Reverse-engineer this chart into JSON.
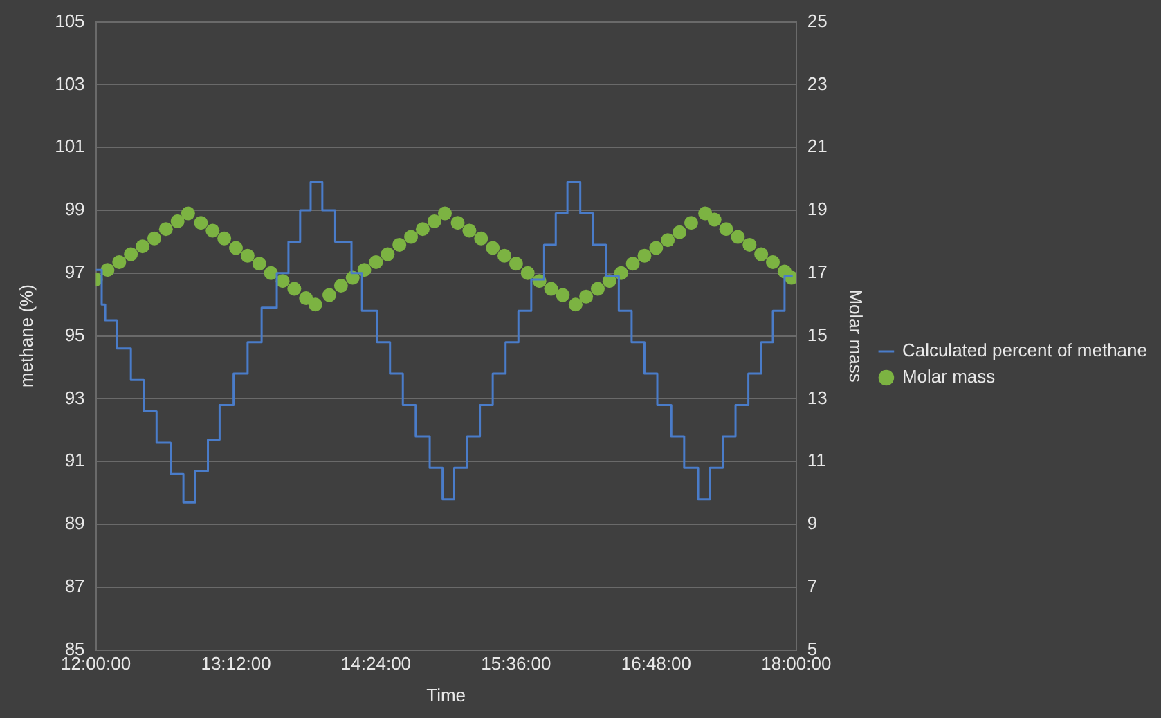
{
  "chart_data": {
    "type": "step",
    "xlabel": "Time",
    "ylabel": "methane (%)",
    "y2label": "Molar mass",
    "xlim": [
      12,
      18
    ],
    "xticks": [
      {
        "value": 12,
        "label": "12:00:00"
      },
      {
        "value": 13.2,
        "label": "13:12:00"
      },
      {
        "value": 14.4,
        "label": "14:24:00"
      },
      {
        "value": 15.6,
        "label": "15:36:00"
      },
      {
        "value": 16.8,
        "label": "16:48:00"
      },
      {
        "value": 18,
        "label": "18:00:00"
      }
    ],
    "ylim": [
      85,
      105
    ],
    "yticks": [
      85,
      87,
      89,
      91,
      93,
      95,
      97,
      99,
      101,
      103,
      105
    ],
    "y2lim": [
      5,
      25
    ],
    "y2ticks": [
      5,
      7,
      9,
      11,
      13,
      15,
      17,
      19,
      21,
      23,
      25
    ],
    "grid": "y",
    "legend": "right",
    "series": [
      {
        "name": "Calculated percent of methane",
        "color": "#4a7cc9",
        "x": [
          12,
          12.05,
          12.08,
          12.18,
          12.3,
          12.41,
          12.52,
          12.64,
          12.75,
          12.85,
          12.96,
          13.06,
          13.18,
          13.3,
          13.42,
          13.55,
          13.65,
          13.75,
          13.84,
          13.94,
          14.05,
          14.19,
          14.28,
          14.41,
          14.52,
          14.63,
          14.74,
          14.86,
          14.97,
          15.07,
          15.18,
          15.29,
          15.4,
          15.51,
          15.62,
          15.73,
          15.84,
          15.94,
          16.04,
          16.15,
          16.26,
          16.37,
          16.48,
          16.59,
          16.7,
          16.81,
          16.93,
          17.04,
          17.16,
          17.26,
          17.37,
          17.48,
          17.59,
          17.7,
          17.8,
          17.9,
          17.97
        ],
        "values": [
          97.1,
          96,
          95.5,
          94.6,
          93.6,
          92.6,
          91.6,
          90.6,
          89.7,
          90.7,
          91.7,
          92.8,
          93.8,
          94.8,
          95.9,
          97,
          98,
          99,
          99.9,
          99,
          98,
          97,
          95.8,
          94.8,
          93.8,
          92.8,
          91.8,
          90.8,
          89.8,
          90.8,
          91.8,
          92.8,
          93.8,
          94.8,
          95.8,
          96.8,
          97.9,
          98.9,
          99.9,
          98.9,
          97.9,
          96.9,
          95.8,
          94.8,
          93.8,
          92.8,
          91.8,
          90.8,
          89.8,
          90.8,
          91.8,
          92.8,
          93.8,
          94.8,
          95.8,
          96.9,
          96.9
        ]
      },
      {
        "name": "Molar mass",
        "type": "scatter",
        "axis": "y2",
        "marker": "circle",
        "color": "#7cb342",
        "x": [
          12,
          12.1,
          12.2,
          12.3,
          12.4,
          12.5,
          12.6,
          12.7,
          12.79,
          12.9,
          13,
          13.1,
          13.2,
          13.3,
          13.4,
          13.5,
          13.6,
          13.7,
          13.8,
          13.88,
          14,
          14.1,
          14.2,
          14.3,
          14.4,
          14.5,
          14.6,
          14.7,
          14.8,
          14.9,
          14.99,
          15.1,
          15.2,
          15.3,
          15.4,
          15.5,
          15.6,
          15.7,
          15.8,
          15.9,
          16,
          16.11,
          16.2,
          16.3,
          16.4,
          16.5,
          16.6,
          16.7,
          16.8,
          16.9,
          17,
          17.1,
          17.22,
          17.3,
          17.4,
          17.5,
          17.6,
          17.7,
          17.8,
          17.9,
          17.96
        ],
        "values": [
          16.8,
          17.1,
          17.35,
          17.6,
          17.85,
          18.1,
          18.4,
          18.65,
          18.9,
          18.6,
          18.35,
          18.1,
          17.8,
          17.55,
          17.3,
          17,
          16.75,
          16.5,
          16.2,
          16,
          16.3,
          16.6,
          16.85,
          17.1,
          17.35,
          17.6,
          17.9,
          18.15,
          18.4,
          18.65,
          18.9,
          18.6,
          18.35,
          18.1,
          17.8,
          17.55,
          17.3,
          17,
          16.75,
          16.5,
          16.3,
          16,
          16.25,
          16.5,
          16.75,
          17,
          17.3,
          17.55,
          17.8,
          18.05,
          18.3,
          18.6,
          18.9,
          18.7,
          18.4,
          18.15,
          17.9,
          17.6,
          17.35,
          17.05,
          16.85
        ]
      }
    ]
  }
}
